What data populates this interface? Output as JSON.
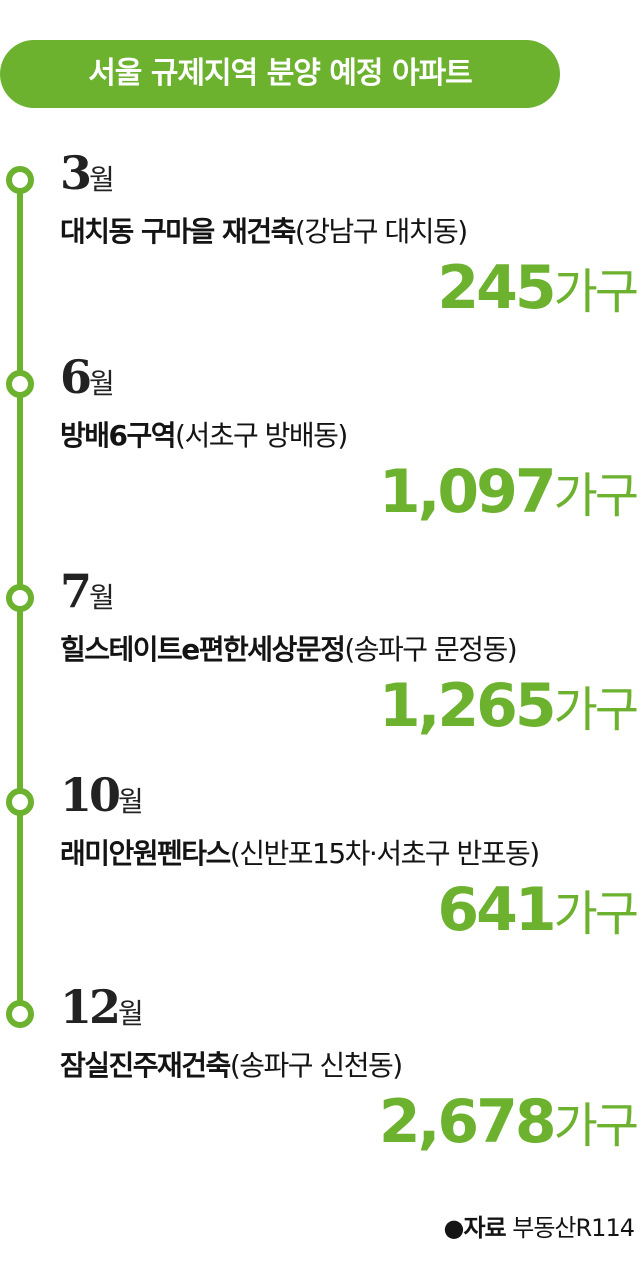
{
  "title": "서울 규제지역 분양 예정 아파트",
  "items": [
    {
      "month": "3",
      "month_unit": "월",
      "name": "대치동 구마을 재건축",
      "location": "(강남구 대치동)",
      "count": "245",
      "count_unit": "가구"
    },
    {
      "month": "6",
      "month_unit": "월",
      "name": "방배6구역",
      "location": "(서초구 방배동)",
      "count": "1,097",
      "count_unit": "가구"
    },
    {
      "month": "7",
      "month_unit": "월",
      "name": "힐스테이트e편한세상문정",
      "location": "(송파구 문정동)",
      "count": "1,265",
      "count_unit": "가구"
    },
    {
      "month": "10",
      "month_unit": "월",
      "name": "래미안원펜타스",
      "location": "(신반포15차·서초구 반포동)",
      "count": "641",
      "count_unit": "가구"
    },
    {
      "month": "12",
      "month_unit": "월",
      "name": "잠실진주재건축",
      "location": "(송파구 신천동)",
      "count": "2,678",
      "count_unit": "가구"
    }
  ],
  "source": {
    "label": "●자료",
    "text": "부동산R114"
  }
}
